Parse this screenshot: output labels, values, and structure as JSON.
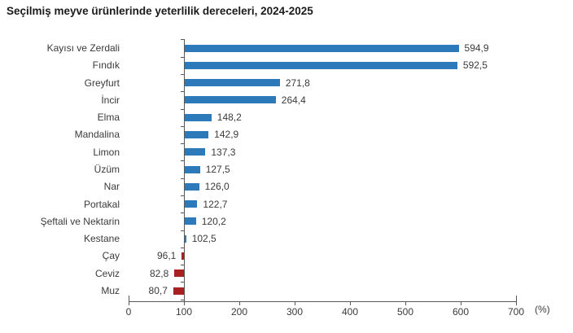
{
  "page": {
    "title": "Seçilmiş meyve ürünlerinde yeterlilik dereceleri, 2024-2025"
  },
  "chart_data": {
    "type": "bar",
    "orientation": "horizontal",
    "title": "Seçilmiş meyve ürünlerinde yeterlilik dereceleri, 2024-2025",
    "xlabel": "(%)",
    "unit_label": "(%)",
    "baseline": 100,
    "xlim": [
      0,
      700
    ],
    "xticks": [
      0,
      100,
      200,
      300,
      400,
      500,
      600,
      700
    ],
    "grid": false,
    "legend": false,
    "categories": [
      "Kayısı ve Zerdali",
      "Fındık",
      "Greyfurt",
      "İncir",
      "Elma",
      "Mandalina",
      "Limon",
      "Üzüm",
      "Nar",
      "Portakal",
      "Şeftali ve Nektarin",
      "Kestane",
      "Çay",
      "Ceviz",
      "Muz"
    ],
    "values": [
      594.9,
      592.5,
      271.8,
      264.4,
      148.2,
      142.9,
      137.3,
      127.5,
      126.0,
      122.7,
      120.2,
      102.5,
      96.1,
      82.8,
      80.7
    ],
    "value_labels": [
      "594,9",
      "592,5",
      "271,8",
      "264,4",
      "148,2",
      "142,9",
      "137,3",
      "127,5",
      "126,0",
      "122,7",
      "120,2",
      "102,5",
      "96,1",
      "82,8",
      "80,7"
    ],
    "colors": {
      "bar_above_baseline": "#2d7abb",
      "bar_below_baseline": "#a82022",
      "axis": "#595959",
      "label_text": "#3a3a3a",
      "title_text": "#1a1a1a"
    }
  }
}
